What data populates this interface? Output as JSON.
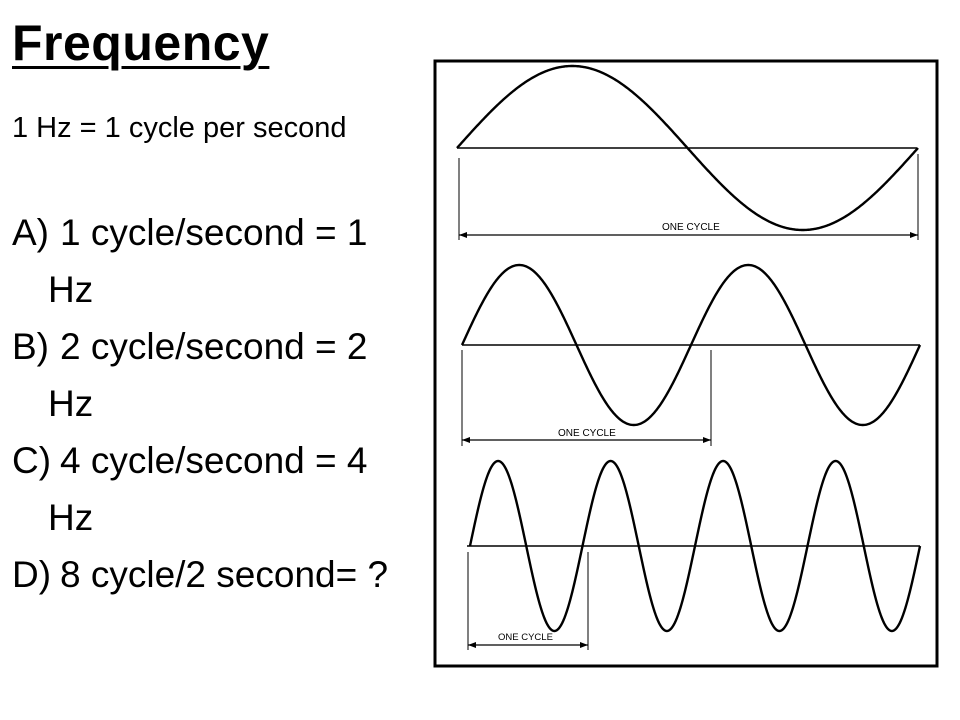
{
  "slide": {
    "title": "Frequency",
    "subtitle": "1 Hz = 1 cycle per second",
    "items": [
      {
        "letter": "A)",
        "text": "1 cycle/second = 1",
        "cont": "Hz"
      },
      {
        "letter": "B)",
        "text": "2 cycle/second = 2",
        "cont": "Hz"
      },
      {
        "letter": "C)",
        "text": "4 cycle/second = 4",
        "cont": "Hz"
      },
      {
        "letter": "D)",
        "text": "8 cycle/2 second= ?",
        "cont": ""
      }
    ]
  },
  "diagram": {
    "waves": [
      {
        "cycles_shown": 1,
        "label": "ONE CYCLE"
      },
      {
        "cycles_shown": 2,
        "label": "ONE CYCLE"
      },
      {
        "cycles_shown": 4,
        "label": "ONE CYCLE"
      }
    ]
  }
}
